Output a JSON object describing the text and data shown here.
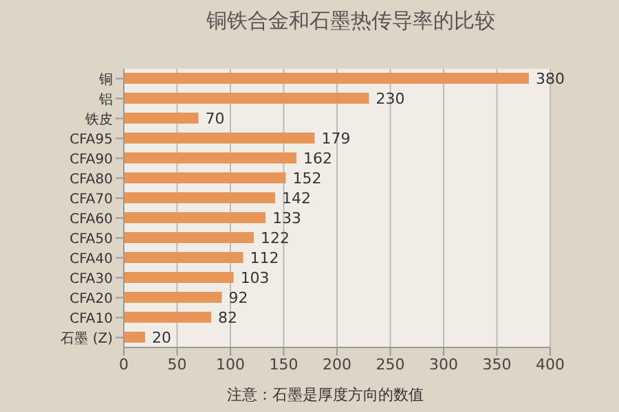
{
  "chart_data": {
    "type": "bar",
    "orientation": "horizontal",
    "title": "铜铁合金和石墨热传导率的比较",
    "xlabel": "注意：石墨是厚度方向的数值",
    "categories": [
      "铜",
      "铝",
      "铁皮",
      "CFA95",
      "CFA90",
      "CFA80",
      "CFA70",
      "CFA60",
      "CFA50",
      "CFA40",
      "CFA30",
      "CFA20",
      "CFA10",
      "石墨 (Z)"
    ],
    "values": [
      380,
      230,
      70,
      179,
      162,
      152,
      142,
      133,
      122,
      112,
      103,
      92,
      82,
      20
    ],
    "color": "#e8955a",
    "data_labels": true,
    "xlim": [
      0,
      400
    ],
    "xticks": [
      0,
      50,
      100,
      150,
      200,
      250,
      300,
      350,
      400
    ],
    "grid": "x"
  }
}
